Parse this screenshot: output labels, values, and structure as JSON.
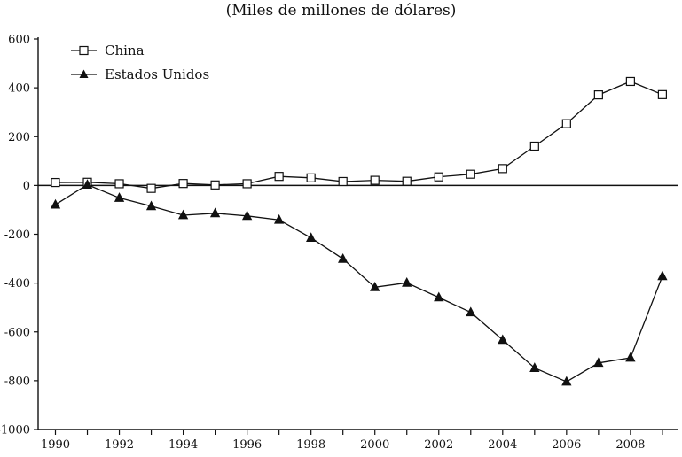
{
  "chart_data": {
    "type": "line",
    "title": "(Miles de millones de dólares)",
    "xlabel": "",
    "ylabel": "",
    "x": [
      1990,
      1991,
      1992,
      1993,
      1994,
      1995,
      1996,
      1997,
      1998,
      1999,
      2000,
      2001,
      2002,
      2003,
      2004,
      2005,
      2006,
      2007,
      2008,
      2009
    ],
    "xlim": [
      1989.6,
      2009.5
    ],
    "ylim": [
      -1000,
      600
    ],
    "y_ticks": [
      600,
      400,
      200,
      0,
      -200,
      -400,
      -600,
      -800,
      -1000
    ],
    "y_tick_labels": [
      "600",
      "400",
      "200",
      "0",
      "-200",
      "-400",
      "-600",
      "-800",
      "-1000"
    ],
    "x_ticks": [
      1990,
      1991,
      1992,
      1993,
      1994,
      1995,
      1996,
      1997,
      1998,
      1999,
      2000,
      2001,
      2002,
      2003,
      2004,
      2005,
      2006,
      2007,
      2008,
      2009
    ],
    "x_tick_labels": [
      "1990",
      "1992",
      "1994",
      "1996",
      "1998",
      "2000",
      "2002",
      "2004",
      "2006",
      "2008"
    ],
    "x_tick_label_values": [
      1990,
      1992,
      1994,
      1996,
      1998,
      2000,
      2002,
      2004,
      2006,
      2008
    ],
    "grid": false,
    "legend_position": "top-left",
    "series": [
      {
        "name": "China",
        "marker": "open-square",
        "values": [
          12,
          13,
          7,
          -12,
          8,
          2,
          7,
          37,
          31,
          16,
          21,
          17,
          35,
          46,
          69,
          161,
          253,
          371,
          426,
          372
        ]
      },
      {
        "name": "Estados Unidos",
        "marker": "filled-triangle",
        "values": [
          -79,
          3,
          -51,
          -85,
          -122,
          -114,
          -125,
          -141,
          -215,
          -301,
          -417,
          -399,
          -459,
          -520,
          -633,
          -748,
          -804,
          -727,
          -706,
          -372
        ]
      }
    ]
  }
}
